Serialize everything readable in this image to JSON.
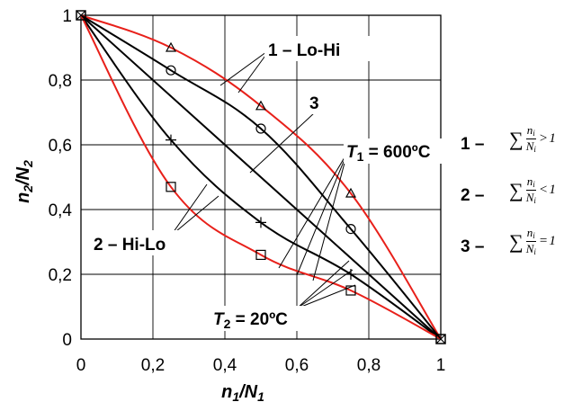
{
  "chart_data": {
    "type": "line",
    "xlabel": {
      "main": "n",
      "sub1": "1",
      "slash": "/N",
      "sub2": "1"
    },
    "ylabel": {
      "main": "n",
      "sub1": "2",
      "slash": "/N",
      "sub2": "2"
    },
    "xlim": [
      0,
      1
    ],
    "ylim": [
      0,
      1
    ],
    "x_ticks": [
      "0",
      "0,2",
      "0,4",
      "0,6",
      "0,8",
      "1"
    ],
    "y_ticks": [
      "0",
      "0,2",
      "0,4",
      "0,6",
      "0,8",
      "1"
    ],
    "grid": true,
    "series": [
      {
        "color": "#e8201a",
        "marker": "triangle",
        "points": [
          [
            0,
            1
          ],
          [
            0.25,
            0.9
          ],
          [
            0.5,
            0.72
          ],
          [
            0.75,
            0.45
          ],
          [
            1,
            0
          ]
        ]
      },
      {
        "color": "#000000",
        "marker": "circle",
        "points": [
          [
            0,
            1
          ],
          [
            0.25,
            0.83
          ],
          [
            0.5,
            0.65
          ],
          [
            0.75,
            0.34
          ],
          [
            1,
            0
          ]
        ]
      },
      {
        "color": "#000000",
        "marker": "none",
        "points": [
          [
            0,
            1
          ],
          [
            1,
            0
          ]
        ]
      },
      {
        "color": "#000000",
        "marker": "plus",
        "points": [
          [
            0,
            1
          ],
          [
            0.25,
            0.615
          ],
          [
            0.5,
            0.36
          ],
          [
            0.75,
            0.2
          ],
          [
            1,
            0
          ]
        ]
      },
      {
        "color": "#e8201a",
        "marker": "square",
        "points": [
          [
            0,
            1
          ],
          [
            0.25,
            0.47
          ],
          [
            0.5,
            0.26
          ],
          [
            0.75,
            0.15
          ],
          [
            1,
            0
          ]
        ]
      }
    ],
    "annotations": {
      "lo_hi": "1 – Lo-Hi",
      "three": "3",
      "hi_lo": "2 – Hi-Lo",
      "t1": {
        "name": "T",
        "sub": "1",
        "value": " = 600ºC"
      },
      "t2": {
        "name": "T",
        "sub": "2",
        "value": " = 20ºC"
      }
    }
  },
  "legend": {
    "items": [
      {
        "number": "1 –",
        "sum": "∑",
        "num": "n",
        "num_sub": "i",
        "den": "N",
        "den_sub": "i",
        "rel": ">",
        "rhs": "1"
      },
      {
        "number": "2 –",
        "sum": "∑",
        "num": "n",
        "num_sub": "i",
        "den": "N",
        "den_sub": "i",
        "rel": "<",
        "rhs": "1"
      },
      {
        "number": "3 –",
        "sum": "∑",
        "num": "n",
        "num_sub": "i",
        "den": "N",
        "den_sub": "i",
        "rel": "=",
        "rhs": "1"
      }
    ]
  }
}
